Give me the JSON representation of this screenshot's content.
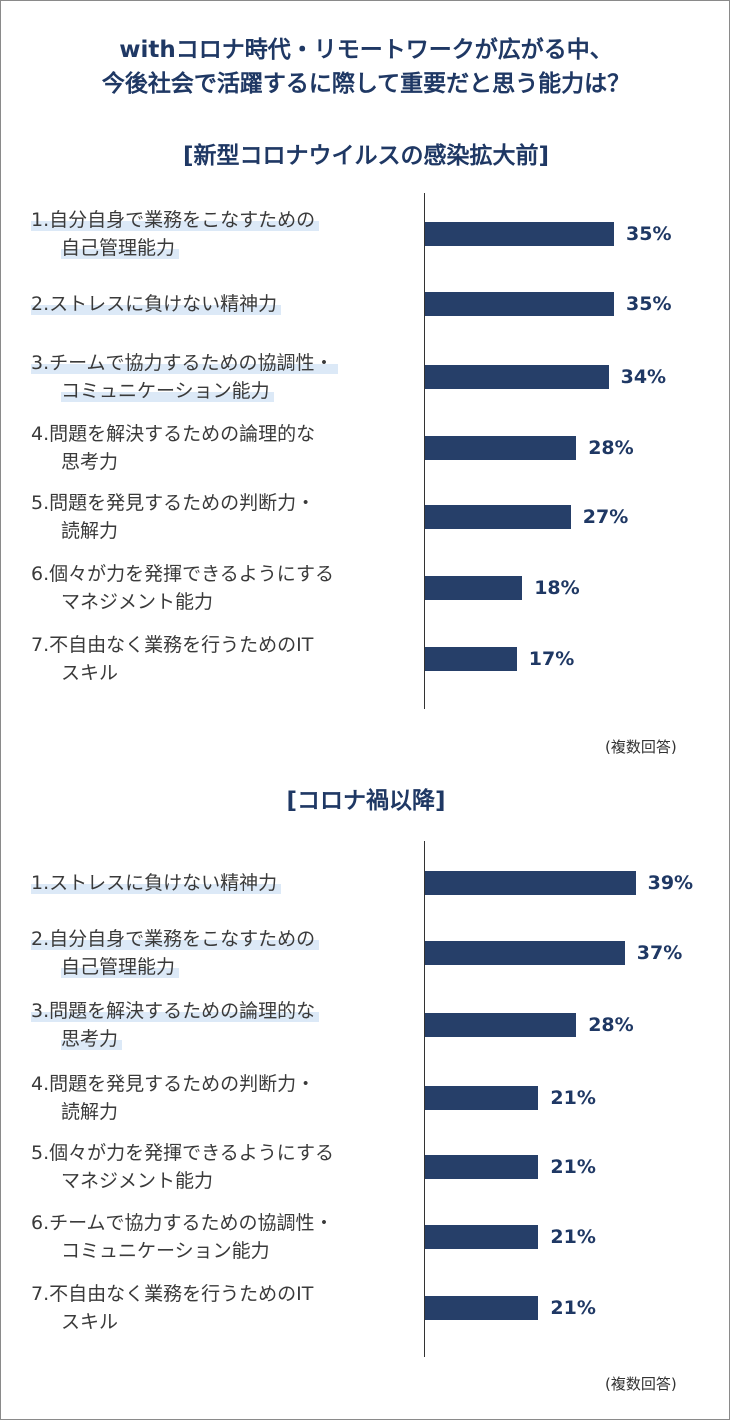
{
  "title_lines": [
    "withコロナ時代・リモートワークが広がる中、",
    "今後社会で活躍するに際して重要だと思う能力は？"
  ],
  "chart_data": [
    {
      "type": "bar",
      "orientation": "horizontal",
      "title": "[新型コロナウイルスの感染拡大前]",
      "unit": "%",
      "note": "(複数回答)",
      "highlight_top": 3,
      "categories": [
        [
          "1.自分自身で業務をこなすための",
          "自己管理能力"
        ],
        [
          "2.ストレスに負けない精神力"
        ],
        [
          "3.チームで協力するための協調性・",
          "コミュニケーション能力"
        ],
        [
          "4.問題を解決するための論理的な",
          "思考力"
        ],
        [
          "5.問題を発見するための判断力・",
          "読解力"
        ],
        [
          "6.個々が力を発揮できるようにする",
          "マネジメント能力"
        ],
        [
          "7.不自由なく業務を行うためのIT",
          "スキル"
        ]
      ],
      "values": [
        35,
        35,
        34,
        28,
        27,
        18,
        17
      ],
      "value_labels": [
        "35%",
        "35%",
        "34%",
        "28%",
        "27%",
        "18%",
        "17%"
      ]
    },
    {
      "type": "bar",
      "orientation": "horizontal",
      "title": "[コロナ禍以降]",
      "unit": "%",
      "note": "(複数回答)",
      "highlight_top": 3,
      "categories": [
        [
          "1.ストレスに負けない精神力"
        ],
        [
          "2.自分自身で業務をこなすための",
          "自己管理能力"
        ],
        [
          "3.問題を解決するための論理的な",
          "思考力"
        ],
        [
          "4.問題を発見するための判断力・",
          "読解力"
        ],
        [
          "5.個々が力を発揮できるようにする",
          "マネジメント能力"
        ],
        [
          "6.チームで協力するための協調性・",
          "コミュニケーション能力"
        ],
        [
          "7.不自由なく業務を行うためのIT",
          "スキル"
        ]
      ],
      "values": [
        39,
        37,
        28,
        21,
        21,
        21,
        21
      ],
      "value_labels": [
        "39%",
        "37%",
        "28%",
        "21%",
        "21%",
        "21%",
        "21%"
      ]
    }
  ],
  "colors": {
    "bar": "#263f69",
    "title": "#1f3864",
    "highlight": "#dce9f7"
  }
}
